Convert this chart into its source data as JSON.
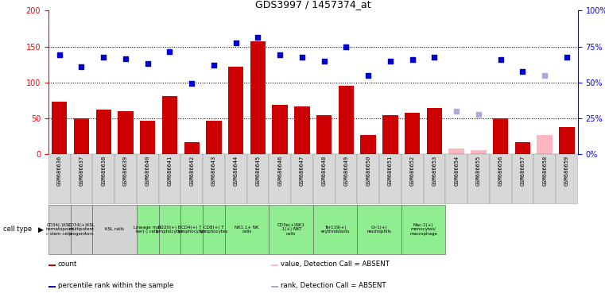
{
  "title": "GDS3997 / 1457374_at",
  "samples": [
    "GSM686636",
    "GSM686637",
    "GSM686638",
    "GSM686639",
    "GSM686640",
    "GSM686641",
    "GSM686642",
    "GSM686643",
    "GSM686644",
    "GSM686645",
    "GSM686646",
    "GSM686647",
    "GSM686648",
    "GSM686649",
    "GSM686650",
    "GSM686651",
    "GSM686652",
    "GSM686653",
    "GSM686654",
    "GSM686655",
    "GSM686656",
    "GSM686657",
    "GSM686658",
    "GSM686659"
  ],
  "bar_values": [
    73,
    50,
    62,
    60,
    47,
    81,
    17,
    46,
    122,
    157,
    69,
    66,
    54,
    95,
    26,
    54,
    57,
    64,
    8,
    5,
    50,
    17,
    27,
    38
  ],
  "bar_absent": [
    false,
    false,
    false,
    false,
    false,
    false,
    false,
    false,
    false,
    false,
    false,
    false,
    false,
    false,
    false,
    false,
    false,
    false,
    true,
    true,
    false,
    false,
    true,
    false
  ],
  "point_values": [
    138,
    122,
    135,
    133,
    126,
    143,
    98,
    124,
    155,
    163,
    138,
    135,
    130,
    150,
    110,
    130,
    132,
    135,
    null,
    null,
    132,
    115,
    null,
    135
  ],
  "point_absent_rank": [
    null,
    null,
    null,
    null,
    null,
    null,
    null,
    null,
    null,
    null,
    null,
    null,
    null,
    null,
    null,
    null,
    null,
    null,
    60,
    55,
    null,
    null,
    110,
    null
  ],
  "bar_color": "#cc0000",
  "bar_absent_color": "#ffb6c1",
  "point_color": "#0000cc",
  "point_absent_color": "#aaaadd",
  "ylim_left": [
    0,
    200
  ],
  "yticks_left": [
    0,
    50,
    100,
    150,
    200
  ],
  "ylim_right": [
    0,
    100
  ],
  "yticks_right": [
    0,
    25,
    50,
    75,
    100
  ],
  "ytick_labels_right": [
    "0%",
    "25%",
    "50%",
    "75%",
    "100%"
  ],
  "hlines": [
    50,
    100,
    150
  ],
  "cell_groups": [
    {
      "start": 0,
      "end": 0,
      "color": "#d3d3d3",
      "label": "CD34(-)KSL\nhematopoiet\nc stem cells"
    },
    {
      "start": 1,
      "end": 1,
      "color": "#d3d3d3",
      "label": "CD34(+)KSL\nmultipotent\nprogenitors"
    },
    {
      "start": 2,
      "end": 3,
      "color": "#d3d3d3",
      "label": "KSL cells"
    },
    {
      "start": 4,
      "end": 4,
      "color": "#90ee90",
      "label": "Lineage mar\nker(-) cells"
    },
    {
      "start": 5,
      "end": 5,
      "color": "#90ee90",
      "label": "B220(+) B\nlymphocytes"
    },
    {
      "start": 6,
      "end": 6,
      "color": "#90ee90",
      "label": "CD4(+) T\nlymphocytes"
    },
    {
      "start": 7,
      "end": 7,
      "color": "#90ee90",
      "label": "CD8(+) T\nlymphocytes"
    },
    {
      "start": 8,
      "end": 9,
      "color": "#90ee90",
      "label": "NK1.1+ NK\ncells"
    },
    {
      "start": 10,
      "end": 11,
      "color": "#90ee90",
      "label": "CD3e(+)NK1\n.1(+) NKT\ncells"
    },
    {
      "start": 12,
      "end": 13,
      "color": "#90ee90",
      "label": "Ter119(+)\nerythroblasts"
    },
    {
      "start": 14,
      "end": 15,
      "color": "#90ee90",
      "label": "Gr-1(+)\nneutrophils"
    },
    {
      "start": 16,
      "end": 17,
      "color": "#90ee90",
      "label": "Mac-1(+)\nmonocytes/\nmacrophage"
    }
  ],
  "legend_items": [
    {
      "color": "#cc0000",
      "label": "count"
    },
    {
      "color": "#0000cc",
      "label": "percentile rank within the sample"
    },
    {
      "color": "#ffb6c1",
      "label": "value, Detection Call = ABSENT"
    },
    {
      "color": "#aaaadd",
      "label": "rank, Detection Call = ABSENT"
    }
  ]
}
